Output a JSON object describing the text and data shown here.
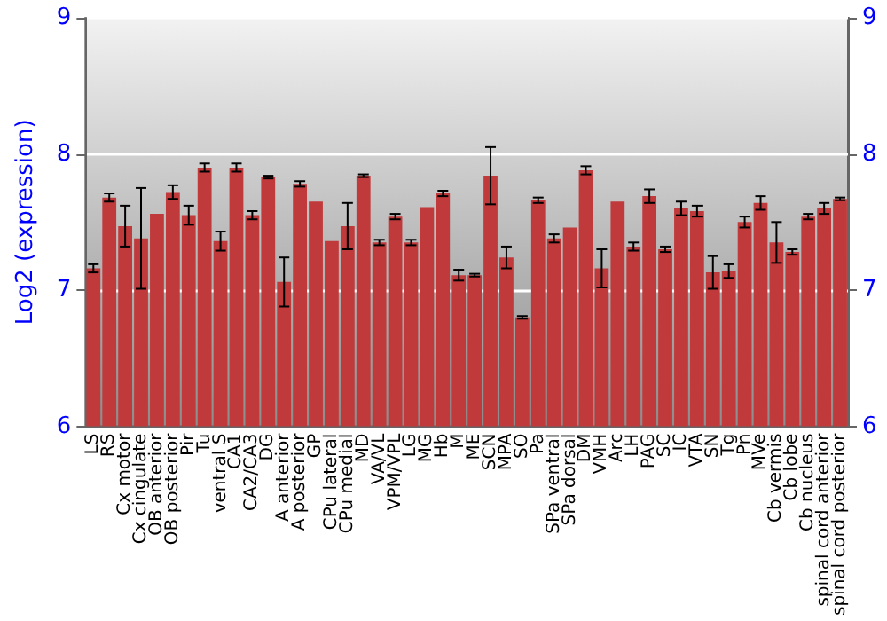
{
  "chart_data": {
    "type": "bar",
    "ylabel": "Log2 (expression)",
    "categories": [
      "LS",
      "RS",
      "Cx motor",
      "Cx cingulate",
      "OB anterior",
      "OB posterior",
      "Pir",
      "Tu",
      "ventral S",
      "CA1",
      "CA2/CA3",
      "DG",
      "A anterior",
      "A posterior",
      "GP",
      "CPu lateral",
      "CPu medial",
      "MD",
      "VA/VL",
      "VPM/VPL",
      "LG",
      "MG",
      "Hb",
      "M",
      "ME",
      "SCN",
      "MPA",
      "SO",
      "Pa",
      "SPa ventral",
      "SPa dorsal",
      "DM",
      "VMH",
      "Arc",
      "LH",
      "PAG",
      "SC",
      "IC",
      "VTA",
      "SN",
      "Tg",
      "Pn",
      "MVe",
      "Cb vermis",
      "Cb lobe",
      "Cb nucleus",
      "spinal cord anterior",
      "spinal cord posterior"
    ],
    "series": [
      {
        "color": "#c0393b",
        "values": [
          7.16,
          7.68,
          7.47,
          7.38,
          7.56,
          7.72,
          7.55,
          7.9,
          7.36,
          7.9,
          7.55,
          7.83,
          7.06,
          7.78,
          7.65,
          7.36,
          7.47,
          7.84,
          7.35,
          7.54,
          7.35,
          7.61,
          7.71,
          7.11,
          7.11,
          7.84,
          7.24,
          6.8,
          7.66,
          7.38,
          7.46,
          7.88,
          7.16,
          7.65,
          7.32,
          7.69,
          7.3,
          7.6,
          7.58,
          7.13,
          7.14,
          7.5,
          7.64,
          7.35,
          7.28,
          7.54,
          7.6,
          7.67
        ],
        "errors": [
          0.03,
          0.03,
          0.15,
          0.37,
          null,
          0.05,
          0.07,
          0.03,
          0.07,
          0.03,
          0.03,
          0.01,
          0.18,
          0.02,
          null,
          null,
          0.17,
          0.01,
          0.02,
          0.02,
          0.02,
          null,
          0.02,
          0.04,
          0.01,
          0.21,
          0.08,
          0.01,
          0.02,
          0.03,
          null,
          0.03,
          0.14,
          null,
          0.03,
          0.05,
          0.02,
          0.05,
          0.04,
          0.12,
          0.05,
          0.04,
          0.05,
          0.15,
          0.02,
          0.02,
          0.04,
          0.01
        ]
      }
    ],
    "ylim": [
      6,
      9
    ],
    "yticks": [
      6,
      7,
      8,
      9
    ],
    "y2lim": [
      6,
      9
    ],
    "y2ticks": [
      6,
      7,
      8,
      9
    ],
    "grid": "y"
  }
}
